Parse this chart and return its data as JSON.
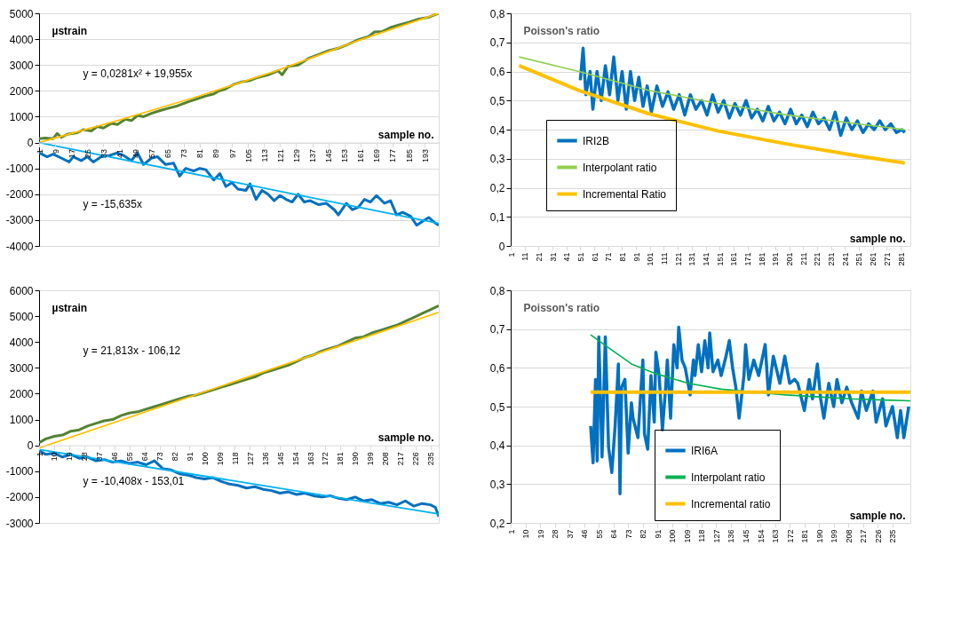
{
  "chart_data": [
    {
      "type": "line",
      "ylabel": "µstrain",
      "xlabel": "sample no.",
      "grid": "y",
      "xlim": [
        1,
        200
      ],
      "xticks": [
        1,
        9,
        17,
        25,
        33,
        41,
        49,
        57,
        65,
        73,
        81,
        89,
        97,
        105,
        113,
        121,
        129,
        137,
        145,
        153,
        161,
        169,
        177,
        185,
        193
      ],
      "ylim": [
        -4000,
        5000
      ],
      "yticks": [
        -4000,
        -3000,
        -2000,
        -1000,
        0,
        1000,
        2000,
        3000,
        4000,
        5000
      ],
      "annotations": [
        "y = 0,0281x² + 19,955x",
        "y = -15,635x"
      ],
      "series": [
        {
          "color": "#548235",
          "x": [
            1,
            4,
            8,
            10,
            12,
            15,
            20,
            23,
            27,
            30,
            33,
            37,
            40,
            44,
            47,
            50,
            53,
            57,
            61,
            65,
            70,
            75,
            80,
            84,
            88,
            90,
            94,
            98,
            102,
            106,
            110,
            115,
            120,
            122,
            125,
            130,
            135,
            140,
            145,
            150,
            155,
            160,
            165,
            168,
            172,
            176,
            180,
            185,
            190,
            195,
            200
          ],
          "values": [
            150,
            170,
            150,
            350,
            200,
            320,
            380,
            500,
            450,
            620,
            560,
            740,
            700,
            900,
            850,
            1050,
            1000,
            1130,
            1230,
            1320,
            1420,
            1570,
            1700,
            1800,
            1880,
            1980,
            2080,
            2250,
            2350,
            2400,
            2520,
            2620,
            2780,
            2620,
            2950,
            3000,
            3250,
            3400,
            3550,
            3650,
            3800,
            3980,
            4100,
            4280,
            4300,
            4450,
            4550,
            4650,
            4780,
            4850,
            5000
          ]
        },
        {
          "color": "#ffc000",
          "x": [
            1,
            40,
            80,
            120,
            160,
            200
          ],
          "values": [
            0,
            850,
            1780,
            2800,
            3950,
            5000
          ]
        },
        {
          "color": "#0070c0",
          "x": [
            1,
            5,
            8,
            12,
            16,
            18,
            22,
            25,
            28,
            32,
            36,
            40,
            43,
            47,
            50,
            53,
            57,
            60,
            64,
            68,
            71,
            74,
            78,
            81,
            84,
            88,
            91,
            94,
            97,
            100,
            104,
            106,
            109,
            112,
            115,
            118,
            121,
            124,
            127,
            130,
            133,
            136,
            140,
            144,
            148,
            150,
            154,
            157,
            160,
            163,
            166,
            169,
            173,
            176,
            179,
            182,
            186,
            189,
            192,
            195,
            198,
            200
          ],
          "values": [
            -400,
            -550,
            -450,
            -600,
            -750,
            -550,
            -700,
            -550,
            -750,
            -550,
            -500,
            -400,
            -500,
            -700,
            -400,
            -850,
            -600,
            -550,
            -850,
            -800,
            -1300,
            -1000,
            -1100,
            -1000,
            -1050,
            -1450,
            -1200,
            -1700,
            -1550,
            -1800,
            -1850,
            -1600,
            -2200,
            -1850,
            -2000,
            -2250,
            -2050,
            -2200,
            -2300,
            -2000,
            -2300,
            -2250,
            -2400,
            -2350,
            -2600,
            -2800,
            -2350,
            -2600,
            -2500,
            -2200,
            -2300,
            -2050,
            -2350,
            -2250,
            -2800,
            -2700,
            -2850,
            -3200,
            -3050,
            -2900,
            -3100,
            -3200
          ]
        },
        {
          "color": "#00b0f0",
          "x": [
            1,
            200
          ],
          "values": [
            0,
            -3130
          ]
        }
      ]
    },
    {
      "type": "line",
      "ylabel": "Poisson's ratio",
      "xlabel": "sample no.",
      "grid": "y",
      "legend": "bottom left",
      "xlim": [
        1,
        288
      ],
      "xticks": [
        1,
        11,
        21,
        31,
        41,
        51,
        61,
        71,
        81,
        91,
        101,
        111,
        121,
        131,
        141,
        151,
        161,
        171,
        181,
        191,
        201,
        211,
        221,
        231,
        241,
        251,
        261,
        271,
        281
      ],
      "ylim": [
        0,
        0.8
      ],
      "yticks": [
        0,
        {
          "value": 0.1,
          "label": "0,1"
        },
        {
          "value": 0.2,
          "label": "0,2"
        },
        {
          "value": 0.3,
          "label": "0,3"
        },
        {
          "value": 0.4,
          "label": "0,4"
        },
        {
          "value": 0.5,
          "label": "0,5"
        },
        {
          "value": 0.6,
          "label": "0,6"
        },
        {
          "value": 0.7,
          "label": "0,7"
        },
        {
          "value": 0.8,
          "label": "0,8"
        }
      ],
      "series": [
        {
          "name": "IRI2B",
          "color": "#0070c0",
          "x": [
            51,
            53,
            55,
            58,
            60,
            63,
            66,
            69,
            72,
            75,
            78,
            81,
            84,
            87,
            90,
            93,
            96,
            99,
            102,
            106,
            110,
            114,
            118,
            122,
            126,
            130,
            134,
            138,
            142,
            146,
            150,
            154,
            158,
            162,
            166,
            170,
            174,
            178,
            182,
            186,
            190,
            194,
            198,
            202,
            206,
            210,
            214,
            218,
            222,
            226,
            230,
            234,
            238,
            242,
            246,
            250,
            254,
            258,
            262,
            266,
            270,
            274,
            278,
            282,
            284
          ],
          "values": [
            0.57,
            0.68,
            0.52,
            0.6,
            0.47,
            0.6,
            0.5,
            0.62,
            0.52,
            0.65,
            0.5,
            0.6,
            0.47,
            0.6,
            0.5,
            0.58,
            0.48,
            0.55,
            0.46,
            0.55,
            0.48,
            0.53,
            0.47,
            0.52,
            0.45,
            0.52,
            0.47,
            0.5,
            0.45,
            0.52,
            0.46,
            0.5,
            0.44,
            0.49,
            0.45,
            0.5,
            0.44,
            0.47,
            0.43,
            0.48,
            0.43,
            0.46,
            0.42,
            0.47,
            0.42,
            0.45,
            0.41,
            0.46,
            0.42,
            0.44,
            0.4,
            0.46,
            0.38,
            0.44,
            0.4,
            0.43,
            0.39,
            0.42,
            0.4,
            0.43,
            0.4,
            0.42,
            0.39,
            0.4,
            0.39
          ]
        },
        {
          "name": "Interpolant ratio",
          "color": "#92d050",
          "x": [
            7,
            50,
            100,
            150,
            200,
            250,
            284
          ],
          "values": [
            0.65,
            0.6,
            0.535,
            0.49,
            0.45,
            0.42,
            0.4
          ]
        },
        {
          "name": "Incremental Ratio",
          "color": "#ffc000",
          "x": [
            7,
            50,
            100,
            150,
            200,
            250,
            284
          ],
          "values": [
            0.62,
            0.535,
            0.455,
            0.395,
            0.35,
            0.31,
            0.285
          ]
        }
      ]
    },
    {
      "type": "line",
      "ylabel": "µstrain",
      "xlabel": "sample no.",
      "xlim": [
        1,
        240
      ],
      "xticks": [
        1,
        10,
        19,
        28,
        37,
        46,
        55,
        64,
        73,
        82,
        91,
        100,
        109,
        118,
        127,
        136,
        145,
        154,
        163,
        172,
        181,
        190,
        199,
        208,
        217,
        226,
        235
      ],
      "ylim": [
        -3000,
        6000
      ],
      "yticks": [
        -3000,
        -2000,
        -1000,
        0,
        1000,
        2000,
        3000,
        4000,
        5000,
        6000
      ],
      "annotations": [
        "y = 21,813x - 106,12",
        "y = -10,408x - 153,01"
      ],
      "series": [
        {
          "color": "#548235",
          "x": [
            1,
            5,
            10,
            15,
            20,
            25,
            30,
            35,
            40,
            45,
            50,
            55,
            60,
            65,
            70,
            75,
            80,
            85,
            90,
            95,
            100,
            105,
            110,
            115,
            120,
            125,
            130,
            135,
            140,
            145,
            150,
            155,
            160,
            165,
            170,
            175,
            180,
            185,
            190,
            195,
            200,
            205,
            210,
            215,
            220,
            225,
            230,
            235,
            240
          ],
          "values": [
            100,
            250,
            350,
            400,
            550,
            600,
            750,
            850,
            950,
            1000,
            1150,
            1250,
            1300,
            1400,
            1500,
            1600,
            1700,
            1800,
            1900,
            1950,
            2050,
            2150,
            2250,
            2350,
            2450,
            2550,
            2650,
            2800,
            2900,
            3000,
            3100,
            3250,
            3400,
            3500,
            3650,
            3750,
            3850,
            4000,
            4150,
            4200,
            4350,
            4450,
            4550,
            4650,
            4800,
            4950,
            5100,
            5250,
            5400
          ]
        },
        {
          "color": "#ffc000",
          "x": [
            1,
            240
          ],
          "values": [
            -100,
            5150
          ]
        },
        {
          "color": "#0070c0",
          "x": [
            1,
            5,
            10,
            15,
            20,
            25,
            30,
            35,
            40,
            45,
            50,
            55,
            60,
            65,
            70,
            75,
            80,
            85,
            90,
            95,
            100,
            105,
            110,
            115,
            120,
            125,
            130,
            135,
            140,
            145,
            150,
            155,
            160,
            165,
            170,
            175,
            180,
            185,
            190,
            195,
            200,
            205,
            210,
            215,
            220,
            225,
            230,
            235,
            238,
            240
          ],
          "values": [
            -200,
            -350,
            -300,
            -450,
            -350,
            -500,
            -450,
            -600,
            -550,
            -650,
            -600,
            -700,
            -650,
            -750,
            -600,
            -900,
            -950,
            -1100,
            -1150,
            -1250,
            -1300,
            -1250,
            -1400,
            -1500,
            -1550,
            -1650,
            -1600,
            -1700,
            -1750,
            -1850,
            -1800,
            -1900,
            -1850,
            -1950,
            -2000,
            -1950,
            -2050,
            -2100,
            -2000,
            -2150,
            -2100,
            -2250,
            -2200,
            -2300,
            -2150,
            -2350,
            -2250,
            -2300,
            -2400,
            -2750
          ]
        },
        {
          "color": "#00b0f0",
          "x": [
            1,
            240
          ],
          "values": [
            -160,
            -2650
          ]
        }
      ]
    },
    {
      "type": "line",
      "ylabel": "Poisson's ratio",
      "xlabel": "sample no.",
      "grid": "y",
      "legend": "bottom",
      "xlim": [
        1,
        246
      ],
      "xticks": [
        1,
        10,
        19,
        28,
        37,
        46,
        55,
        64,
        73,
        82,
        91,
        100,
        109,
        118,
        127,
        136,
        145,
        154,
        163,
        172,
        181,
        190,
        199,
        208,
        217,
        226,
        235
      ],
      "ylim": [
        0.2,
        0.8
      ],
      "yticks": [
        {
          "value": 0.2,
          "label": "0,2"
        },
        {
          "value": 0.3,
          "label": "0,3"
        },
        {
          "value": 0.4,
          "label": "0,4"
        },
        {
          "value": 0.5,
          "label": "0,5"
        },
        {
          "value": 0.6,
          "label": "0,6"
        },
        {
          "value": 0.7,
          "label": "0,7"
        },
        {
          "value": 0.8,
          "label": "0,8"
        }
      ],
      "series": [
        {
          "name": "IRI6A",
          "color": "#0070c0",
          "x": [
            50,
            51.5,
            53,
            54,
            55,
            57,
            59,
            61,
            63,
            65,
            67,
            68,
            69,
            71,
            73,
            75,
            76,
            79,
            82,
            83,
            85,
            87,
            89,
            90,
            92,
            94,
            96,
            97,
            99,
            101,
            103,
            104,
            106,
            108,
            111,
            113,
            114,
            116,
            118,
            120,
            122,
            123,
            125,
            128,
            130,
            133,
            135,
            137,
            139,
            141,
            144,
            145,
            147,
            150,
            153,
            157,
            159,
            162,
            166,
            169,
            172,
            175,
            177,
            181,
            184,
            186,
            189,
            191,
            193,
            196,
            199,
            201,
            204,
            207,
            210,
            214,
            216,
            219,
            223,
            225,
            229,
            231,
            235,
            238,
            240,
            242,
            245
          ],
          "values": [
            0.45,
            0.355,
            0.57,
            0.36,
            0.68,
            0.37,
            0.68,
            0.395,
            0.33,
            0.45,
            0.61,
            0.275,
            0.55,
            0.57,
            0.38,
            0.51,
            0.47,
            0.42,
            0.62,
            0.43,
            0.39,
            0.58,
            0.46,
            0.64,
            0.58,
            0.44,
            0.55,
            0.62,
            0.47,
            0.66,
            0.6,
            0.705,
            0.62,
            0.6,
            0.53,
            0.62,
            0.58,
            0.66,
            0.59,
            0.67,
            0.6,
            0.69,
            0.59,
            0.62,
            0.58,
            0.63,
            0.67,
            0.6,
            0.55,
            0.47,
            0.58,
            0.66,
            0.57,
            0.62,
            0.58,
            0.66,
            0.53,
            0.63,
            0.56,
            0.63,
            0.56,
            0.57,
            0.56,
            0.49,
            0.57,
            0.52,
            0.61,
            0.52,
            0.47,
            0.56,
            0.5,
            0.57,
            0.51,
            0.55,
            0.51,
            0.47,
            0.54,
            0.49,
            0.54,
            0.46,
            0.52,
            0.45,
            0.5,
            0.42,
            0.49,
            0.42,
            0.5
          ]
        },
        {
          "name": "Interpolant ratio",
          "color": "#00b050",
          "x": [
            50,
            60,
            75,
            90,
            110,
            130,
            170,
            190,
            210,
            230,
            246
          ],
          "values": [
            0.685,
            0.655,
            0.61,
            0.585,
            0.56,
            0.545,
            0.53,
            0.525,
            0.52,
            0.517,
            0.515
          ]
        },
        {
          "name": "Incremental ratio",
          "color": "#ffc000",
          "x": [
            50,
            246
          ],
          "values": [
            0.537,
            0.537
          ]
        }
      ]
    }
  ]
}
